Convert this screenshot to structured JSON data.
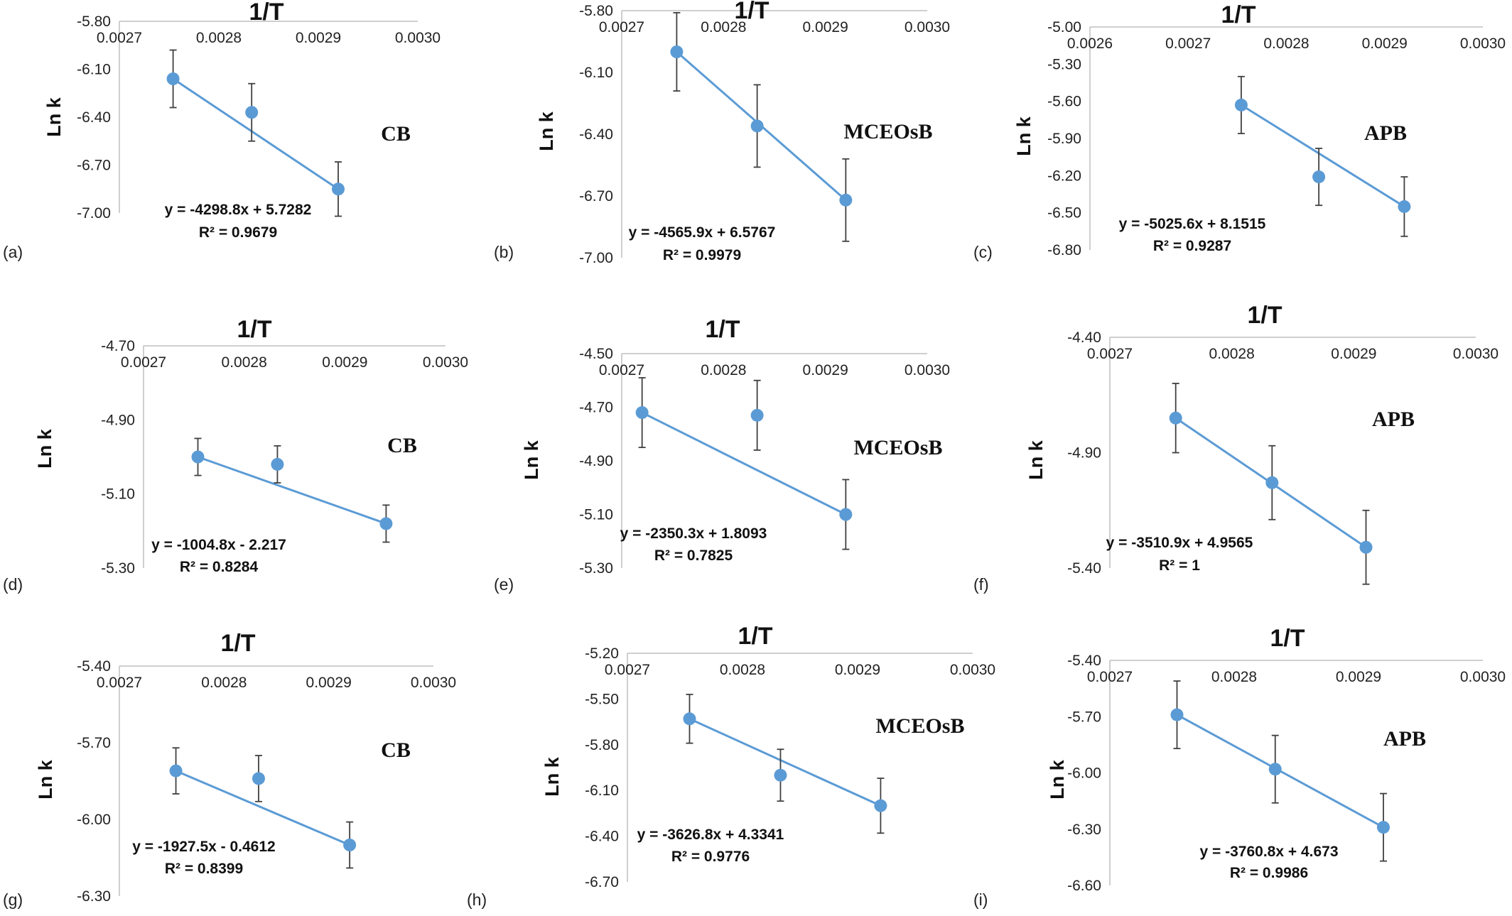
{
  "chart_data": [
    {
      "id": "a",
      "type": "scatter",
      "title": "1/T",
      "ylabel": "Ln k",
      "annotation": "CB",
      "xlim": [
        0.0027,
        0.003
      ],
      "x_ticks": [
        "0.0027",
        "0.0028",
        "0.0029",
        "0.0030"
      ],
      "ylim": [
        -7.0,
        -5.8
      ],
      "y_ticks": [
        "-5.80",
        "-6.10",
        "-6.40",
        "-6.70",
        "-7.00"
      ],
      "points": [
        {
          "x": 0.002754,
          "y": -6.16,
          "err": 0.18
        },
        {
          "x": 0.002833,
          "y": -6.37,
          "err": 0.18
        },
        {
          "x": 0.00292,
          "y": -6.85,
          "err": 0.17
        }
      ],
      "trendline": {
        "slope": -4298.8,
        "intercept": 5.7282
      },
      "equation": "y = -4298.8x + 5.7282",
      "r2": "R² = 0.9679",
      "panel_label": "(a)"
    },
    {
      "id": "b",
      "type": "scatter",
      "title": "1/T",
      "ylabel": "Ln k",
      "annotation": "MCEOsB",
      "xlim": [
        0.0027,
        0.003
      ],
      "x_ticks": [
        "0.0027",
        "0.0028",
        "0.0029",
        "0.0030"
      ],
      "ylim": [
        -7.0,
        -5.8
      ],
      "y_ticks": [
        "-5.80",
        "-6.10",
        "-6.40",
        "-6.70",
        "-7.00"
      ],
      "points": [
        {
          "x": 0.002754,
          "y": -6.0,
          "err": 0.19
        },
        {
          "x": 0.002833,
          "y": -6.36,
          "err": 0.2
        },
        {
          "x": 0.00292,
          "y": -6.72,
          "err": 0.2
        }
      ],
      "trendline": {
        "slope": -4565.9,
        "intercept": 6.5767
      },
      "equation": "y = -4565.9x + 6.5767",
      "r2": "R² = 0.9979",
      "panel_label": "(b)"
    },
    {
      "id": "c",
      "type": "scatter",
      "title": "1/T",
      "ylabel": "Ln k",
      "annotation": "APB",
      "xlim": [
        0.0026,
        0.003
      ],
      "x_ticks": [
        "0.0026",
        "0.0027",
        "0.0028",
        "0.0029",
        "0.0030"
      ],
      "ylim": [
        -6.8,
        -5.0
      ],
      "y_ticks": [
        "-5.00",
        "-5.30",
        "-5.60",
        "-5.90",
        "-6.20",
        "-6.50",
        "-6.80"
      ],
      "points": [
        {
          "x": 0.002754,
          "y": -5.63,
          "err": 0.23
        },
        {
          "x": 0.002833,
          "y": -6.21,
          "err": 0.23
        },
        {
          "x": 0.00292,
          "y": -6.45,
          "err": 0.24
        }
      ],
      "trendline": {
        "slope": -5025.6,
        "intercept": 8.1515
      },
      "equation": "y = -5025.6x + 8.1515",
      "r2": "R² = 0.9287",
      "panel_label": "(c)"
    },
    {
      "id": "d",
      "type": "scatter",
      "title": "1/T",
      "ylabel": "Ln k",
      "annotation": "CB",
      "xlim": [
        0.0027,
        0.003
      ],
      "x_ticks": [
        "0.0027",
        "0.0028",
        "0.0029",
        "0.0030"
      ],
      "ylim": [
        -5.3,
        -4.7
      ],
      "y_ticks": [
        "-4.70",
        "-4.90",
        "-5.10",
        "-5.30"
      ],
      "points": [
        {
          "x": 0.002754,
          "y": -5.0,
          "err": 0.05
        },
        {
          "x": 0.002833,
          "y": -5.02,
          "err": 0.05
        },
        {
          "x": 0.002941,
          "y": -5.18,
          "err": 0.05
        }
      ],
      "trendline": {
        "slope": -1004.8,
        "intercept": -2.217
      },
      "equation": "y = -1004.8x - 2.217",
      "r2": "R² = 0.8284",
      "panel_label": "(d)"
    },
    {
      "id": "e",
      "type": "scatter",
      "title": "1/T",
      "ylabel": "Ln k",
      "annotation": "MCEOsB",
      "xlim": [
        0.0027,
        0.003
      ],
      "x_ticks": [
        "0.0027",
        "0.0028",
        "0.0029",
        "0.0030"
      ],
      "ylim": [
        -5.3,
        -4.5
      ],
      "y_ticks": [
        "-4.50",
        "-4.70",
        "-4.90",
        "-5.10",
        "-5.30"
      ],
      "points": [
        {
          "x": 0.00272,
          "y": -4.72,
          "err": 0.13
        },
        {
          "x": 0.002833,
          "y": -4.73,
          "err": 0.13
        },
        {
          "x": 0.00292,
          "y": -5.1,
          "err": 0.13
        }
      ],
      "trendline": {
        "slope": -2350.3,
        "intercept": 1.8093
      },
      "equation": "y = -2350.3x + 1.8093",
      "r2": "R² = 0.7825",
      "panel_label": "(e)"
    },
    {
      "id": "f",
      "type": "scatter",
      "title": "1/T",
      "ylabel": "Ln k",
      "annotation": "APB",
      "xlim": [
        0.0027,
        0.003
      ],
      "x_ticks": [
        "0.0027",
        "0.0028",
        "0.0029",
        "0.0030"
      ],
      "ylim": [
        -5.4,
        -4.4
      ],
      "y_ticks": [
        "-4.40",
        "-4.90",
        "-5.40"
      ],
      "points": [
        {
          "x": 0.002754,
          "y": -4.75,
          "err": 0.15
        },
        {
          "x": 0.002833,
          "y": -5.03,
          "err": 0.16
        },
        {
          "x": 0.00291,
          "y": -5.31,
          "err": 0.16
        }
      ],
      "trendline": {
        "slope": -3510.9,
        "intercept": 4.9565
      },
      "equation": "y = -3510.9x + 4.9565",
      "r2": "R² = 1",
      "panel_label": "(f)"
    },
    {
      "id": "g",
      "type": "scatter",
      "title": "1/T",
      "ylabel": "Ln k",
      "annotation": "CB",
      "xlim": [
        0.0027,
        0.003
      ],
      "x_ticks": [
        "0.0027",
        "0.0028",
        "0.0029",
        "0.0030"
      ],
      "ylim": [
        -6.3,
        -5.4
      ],
      "y_ticks": [
        "-5.40",
        "-5.70",
        "-6.00",
        "-6.30"
      ],
      "points": [
        {
          "x": 0.002754,
          "y": -5.81,
          "err": 0.09
        },
        {
          "x": 0.002833,
          "y": -5.84,
          "err": 0.09
        },
        {
          "x": 0.00292,
          "y": -6.1,
          "err": 0.09
        }
      ],
      "trendline": {
        "slope": -1927.5,
        "intercept": -0.4612
      },
      "equation": "y = -1927.5x - 0.4612",
      "r2": "R² = 0.8399",
      "panel_label": "(g)"
    },
    {
      "id": "h",
      "type": "scatter",
      "title": "1/T",
      "ylabel": "Ln k",
      "annotation": "MCEOsB",
      "xlim": [
        0.0027,
        0.003
      ],
      "x_ticks": [
        "0.0027",
        "0.0028",
        "0.0029",
        "0.0030"
      ],
      "ylim": [
        -6.7,
        -5.2
      ],
      "y_ticks": [
        "-5.20",
        "-5.50",
        "-5.80",
        "-6.10",
        "-6.40",
        "-6.70"
      ],
      "points": [
        {
          "x": 0.002754,
          "y": -5.63,
          "err": 0.16
        },
        {
          "x": 0.002833,
          "y": -6.0,
          "err": 0.17
        },
        {
          "x": 0.00292,
          "y": -6.2,
          "err": 0.18
        }
      ],
      "trendline": {
        "slope": -3626.8,
        "intercept": 4.3341
      },
      "equation": "y = -3626.8x + 4.3341",
      "r2": "R² = 0.9776",
      "panel_label": "(h)"
    },
    {
      "id": "i",
      "type": "scatter",
      "title": "1/T",
      "ylabel": "Ln k",
      "annotation": "APB",
      "xlim": [
        0.0027,
        0.003
      ],
      "x_ticks": [
        "0.0027",
        "0.0028",
        "0.0029",
        "0.0030"
      ],
      "ylim": [
        -6.6,
        -5.4
      ],
      "y_ticks": [
        "-5.40",
        "-5.70",
        "-6.00",
        "-6.30",
        "-6.60"
      ],
      "points": [
        {
          "x": 0.002754,
          "y": -5.69,
          "err": 0.18
        },
        {
          "x": 0.002833,
          "y": -5.98,
          "err": 0.18
        },
        {
          "x": 0.00292,
          "y": -6.29,
          "err": 0.18
        }
      ],
      "trendline": {
        "slope": -3760.8,
        "intercept": 4.673
      },
      "equation": "y = -3760.8x + 4.673",
      "r2": "R² = 0.9986",
      "panel_label": "(i)"
    }
  ],
  "style": {
    "marker_color": "#5b9bd5",
    "line_color": "#5b9bd5",
    "error_bar_color": "#404040",
    "axis_color": "#bfbfbf"
  }
}
